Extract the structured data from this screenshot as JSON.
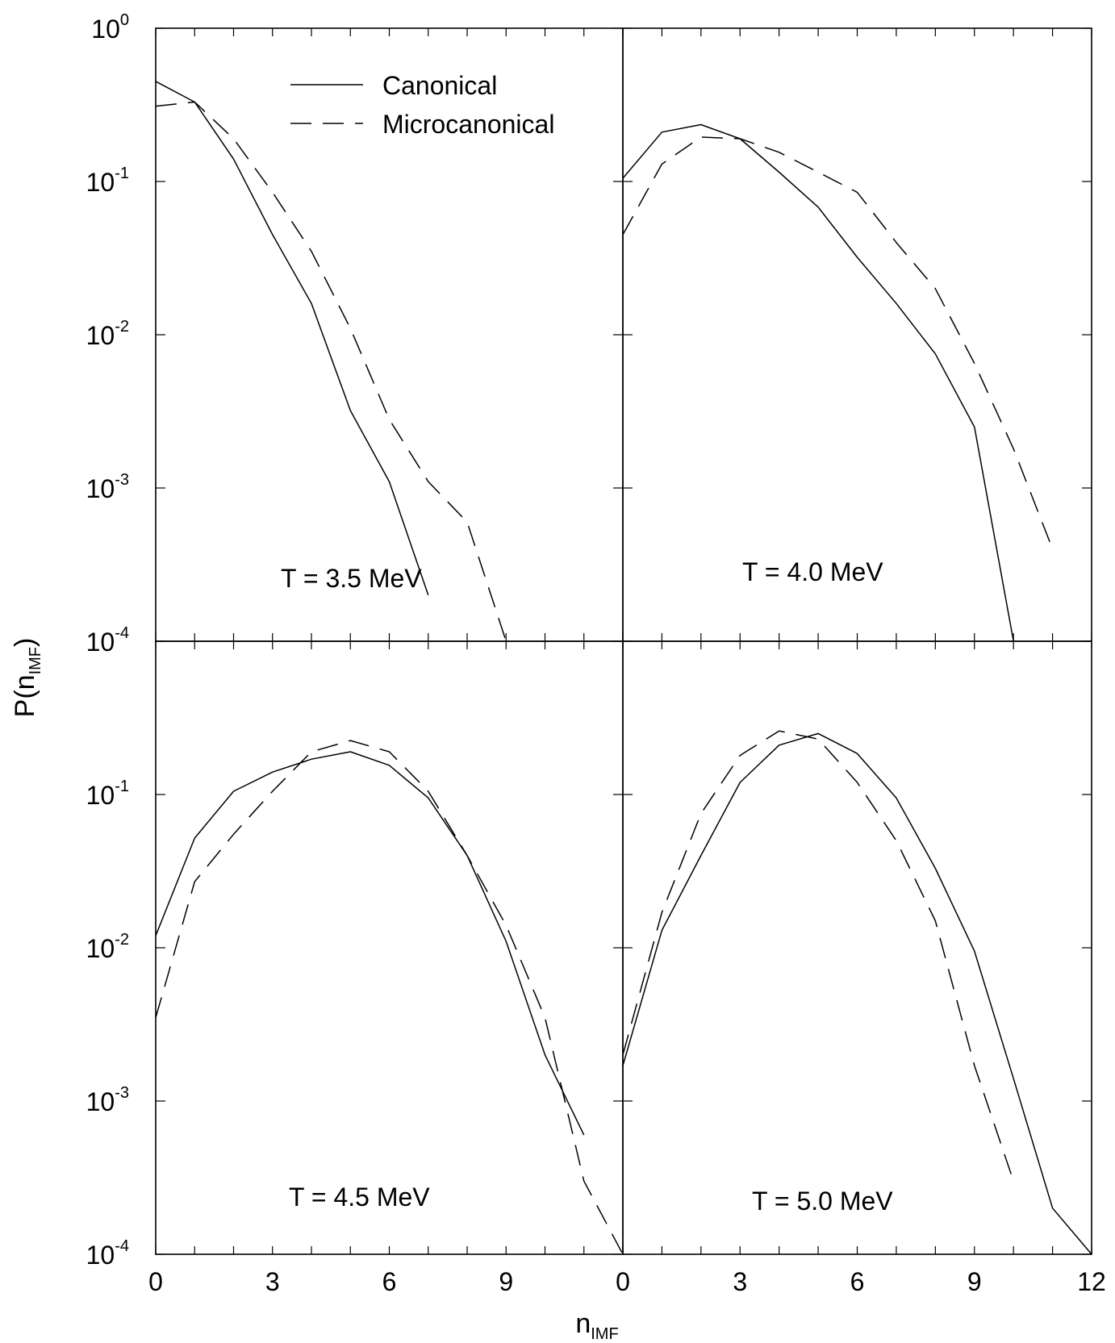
{
  "chart_data": {
    "type": "line",
    "ylabel": "P(n",
    "ylabel_sub": "IMF",
    "ylabel_close": ")",
    "xlabel": "n",
    "xlabel_sub": "IMF",
    "yscale": "log",
    "ylim": [
      0.0001,
      1
    ],
    "y_tick_labels": [
      {
        "value": 1,
        "base": "10",
        "exp": "0"
      },
      {
        "value": 0.1,
        "base": "10",
        "exp": "-1"
      },
      {
        "value": 0.01,
        "base": "10",
        "exp": "-2"
      },
      {
        "value": 0.001,
        "base": "10",
        "exp": "-3"
      },
      {
        "value": 0.0001,
        "base": "10",
        "exp": "-4"
      }
    ],
    "legend": {
      "placement": "top-left panel, upper right",
      "entries": [
        {
          "label": "Canonical",
          "style": "solid"
        },
        {
          "label": "Microcanonical",
          "style": "dashed"
        }
      ]
    },
    "panels": [
      {
        "id": "top-left",
        "label": "T = 3.5 MeV",
        "xlim": [
          0,
          12
        ],
        "x_ticks": [],
        "series": [
          {
            "name": "Canonical",
            "style": "solid",
            "x": [
              0,
              1,
              2,
              3,
              4,
              5,
              6,
              7
            ],
            "y": [
              0.45,
              0.33,
              0.14,
              0.045,
              0.016,
              0.0032,
              0.0011,
              0.0002
            ]
          },
          {
            "name": "Microcanonical",
            "style": "dashed",
            "x": [
              0,
              1,
              2,
              3,
              4,
              5,
              6,
              7,
              8,
              9
            ],
            "y": [
              0.31,
              0.33,
              0.19,
              0.085,
              0.035,
              0.011,
              0.0028,
              0.0011,
              0.0006,
              0.0001
            ]
          }
        ]
      },
      {
        "id": "top-right",
        "label": "T = 4.0 MeV",
        "xlim": [
          0,
          12
        ],
        "x_ticks": [],
        "series": [
          {
            "name": "Canonical",
            "style": "solid",
            "x": [
              0,
              1,
              2,
              3,
              4,
              5,
              6,
              7,
              8,
              9,
              10
            ],
            "y": [
              0.105,
              0.21,
              0.235,
              0.19,
              0.115,
              0.068,
              0.032,
              0.016,
              0.0075,
              0.0025,
              0.0001
            ]
          },
          {
            "name": "Microcanonical",
            "style": "dashed",
            "x": [
              0,
              1,
              2,
              3,
              4,
              5,
              6,
              7,
              8,
              9,
              10,
              11
            ],
            "y": [
              0.045,
              0.13,
              0.195,
              0.19,
              0.155,
              0.115,
              0.085,
              0.04,
              0.02,
              0.0065,
              0.0018,
              0.0004
            ]
          }
        ]
      },
      {
        "id": "bottom-left",
        "label": "T = 4.5 MeV",
        "xlim": [
          0,
          12
        ],
        "x_ticks": [
          "0",
          "3",
          "6",
          "9"
        ],
        "series": [
          {
            "name": "Canonical",
            "style": "solid",
            "x": [
              0,
              1,
              2,
              3,
              4,
              5,
              6,
              7,
              8,
              9,
              10,
              11
            ],
            "y": [
              0.012,
              0.052,
              0.105,
              0.14,
              0.17,
              0.19,
              0.155,
              0.095,
              0.04,
              0.011,
              0.002,
              0.0006
            ]
          },
          {
            "name": "Microcanonical",
            "style": "dashed",
            "x": [
              0,
              1,
              2,
              3,
              4,
              5,
              6,
              7,
              8,
              9,
              10,
              11,
              12
            ],
            "y": [
              0.0035,
              0.027,
              0.055,
              0.105,
              0.19,
              0.225,
              0.19,
              0.105,
              0.04,
              0.014,
              0.0035,
              0.0003,
              0.0001
            ]
          }
        ]
      },
      {
        "id": "bottom-right",
        "label": "T = 5.0 MeV",
        "xlim": [
          0,
          12
        ],
        "x_ticks": [
          "0",
          "3",
          "6",
          "9",
          "12"
        ],
        "series": [
          {
            "name": "Canonical",
            "style": "solid",
            "x": [
              0,
              1,
              2,
              3,
              4,
              5,
              6,
              7,
              8,
              9,
              10,
              11,
              12
            ],
            "y": [
              0.0017,
              0.013,
              0.04,
              0.12,
              0.21,
              0.25,
              0.185,
              0.095,
              0.033,
              0.0095,
              0.0014,
              0.0002,
              0.0001
            ]
          },
          {
            "name": "Microcanonical",
            "style": "dashed",
            "x": [
              0,
              1,
              2,
              3,
              4,
              5,
              6,
              7,
              8,
              9,
              10
            ],
            "y": [
              0.002,
              0.017,
              0.075,
              0.18,
              0.26,
              0.23,
              0.12,
              0.05,
              0.015,
              0.0017,
              0.0003
            ]
          }
        ]
      }
    ]
  }
}
